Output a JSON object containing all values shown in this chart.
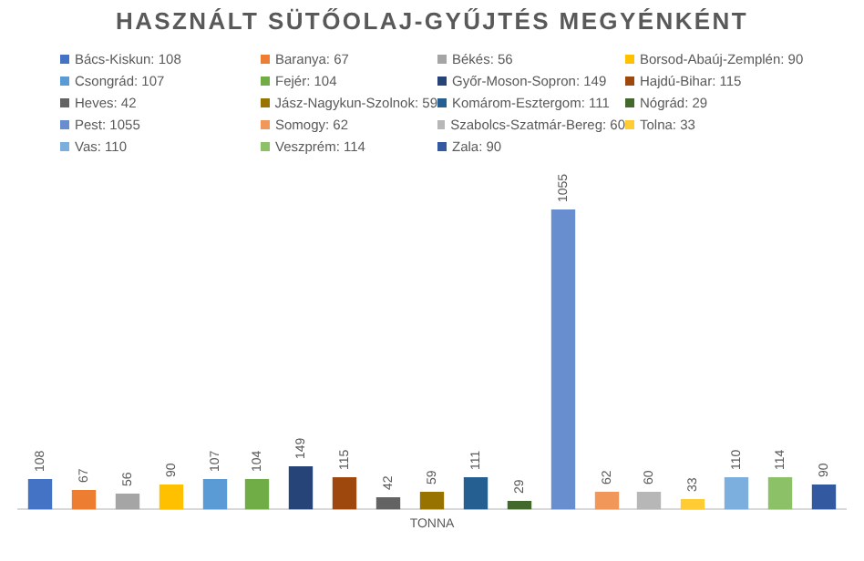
{
  "chart_data": {
    "type": "bar",
    "title": "HASZNÁLT SÜTŐOLAJ-GYŰJTÉS MEGYÉNKÉNT",
    "xlabel": "TONNA",
    "legend": "top",
    "data_labels": true,
    "grid": false,
    "stacked": true,
    "categories": [
      null,
      null,
      null,
      null,
      null,
      null,
      null,
      null,
      null,
      null,
      null,
      null,
      null,
      null,
      null,
      null,
      null,
      null,
      null
    ],
    "series": [
      {
        "name": "Bács-Kiskun: 108",
        "color": "#4472c4",
        "values": [
          108,
          null,
          null,
          null,
          null,
          null,
          null,
          null,
          null,
          null,
          null,
          null,
          null,
          null,
          null,
          null,
          null,
          null,
          null
        ]
      },
      {
        "name": "Baranya: 67",
        "color": "#ed7d31",
        "values": [
          null,
          67,
          null,
          null,
          null,
          null,
          null,
          null,
          null,
          null,
          null,
          null,
          null,
          null,
          null,
          null,
          null,
          null,
          null
        ]
      },
      {
        "name": "Békés: 56",
        "color": "#a5a5a5",
        "values": [
          null,
          null,
          56,
          null,
          null,
          null,
          null,
          null,
          null,
          null,
          null,
          null,
          null,
          null,
          null,
          null,
          null,
          null,
          null
        ]
      },
      {
        "name": "Borsod-Abaúj-Zemplén: 90",
        "color": "#ffc000",
        "values": [
          null,
          null,
          null,
          90,
          null,
          null,
          null,
          null,
          null,
          null,
          null,
          null,
          null,
          null,
          null,
          null,
          null,
          null,
          null
        ]
      },
      {
        "name": "Csongrád: 107",
        "color": "#5b9bd5",
        "values": [
          null,
          null,
          null,
          null,
          107,
          null,
          null,
          null,
          null,
          null,
          null,
          null,
          null,
          null,
          null,
          null,
          null,
          null,
          null
        ]
      },
      {
        "name": "Fejér: 104",
        "color": "#70ad47",
        "values": [
          null,
          null,
          null,
          null,
          null,
          104,
          null,
          null,
          null,
          null,
          null,
          null,
          null,
          null,
          null,
          null,
          null,
          null,
          null
        ]
      },
      {
        "name": "Győr-Moson-Sopron: 149",
        "color": "#264478",
        "values": [
          null,
          null,
          null,
          null,
          null,
          null,
          149,
          null,
          null,
          null,
          null,
          null,
          null,
          null,
          null,
          null,
          null,
          null,
          null
        ]
      },
      {
        "name": "Hajdú-Bihar: 115",
        "color": "#9e480e",
        "values": [
          null,
          null,
          null,
          null,
          null,
          null,
          null,
          115,
          null,
          null,
          null,
          null,
          null,
          null,
          null,
          null,
          null,
          null,
          null
        ]
      },
      {
        "name": "Heves: 42",
        "color": "#636363",
        "values": [
          null,
          null,
          null,
          null,
          null,
          null,
          null,
          null,
          42,
          null,
          null,
          null,
          null,
          null,
          null,
          null,
          null,
          null,
          null
        ]
      },
      {
        "name": "Jász-Nagykun-Szolnok: 59",
        "color": "#997300",
        "values": [
          null,
          null,
          null,
          null,
          null,
          null,
          null,
          null,
          null,
          59,
          null,
          null,
          null,
          null,
          null,
          null,
          null,
          null,
          null
        ]
      },
      {
        "name": "Komárom-Esztergom: 111",
        "color": "#255e91",
        "values": [
          null,
          null,
          null,
          null,
          null,
          null,
          null,
          null,
          null,
          null,
          111,
          null,
          null,
          null,
          null,
          null,
          null,
          null,
          null
        ]
      },
      {
        "name": "Nógrád: 29",
        "color": "#43682b",
        "values": [
          null,
          null,
          null,
          null,
          null,
          null,
          null,
          null,
          null,
          null,
          null,
          29,
          null,
          null,
          null,
          null,
          null,
          null,
          null
        ]
      },
      {
        "name": "Pest: 1055",
        "color": "#698ed0",
        "values": [
          null,
          null,
          null,
          null,
          null,
          null,
          null,
          null,
          null,
          null,
          null,
          null,
          1055,
          null,
          null,
          null,
          null,
          null,
          null
        ]
      },
      {
        "name": "Somogy: 62",
        "color": "#f1975a",
        "values": [
          null,
          null,
          null,
          null,
          null,
          null,
          null,
          null,
          null,
          null,
          null,
          null,
          null,
          62,
          null,
          null,
          null,
          null,
          null
        ]
      },
      {
        "name": "Szabolcs-Szatmár-Bereg: 60",
        "color": "#b7b7b7",
        "values": [
          null,
          null,
          null,
          null,
          null,
          null,
          null,
          null,
          null,
          null,
          null,
          null,
          null,
          null,
          60,
          null,
          null,
          null,
          null
        ]
      },
      {
        "name": "Tolna: 33",
        "color": "#ffcd33",
        "values": [
          null,
          null,
          null,
          null,
          null,
          null,
          null,
          null,
          null,
          null,
          null,
          null,
          null,
          null,
          null,
          33,
          null,
          null,
          null
        ]
      },
      {
        "name": "Vas: 110",
        "color": "#7cafdd",
        "values": [
          null,
          null,
          null,
          null,
          null,
          null,
          null,
          null,
          null,
          null,
          null,
          null,
          null,
          null,
          null,
          null,
          110,
          null,
          null
        ]
      },
      {
        "name": "Veszprém: 114",
        "color": "#8cc168",
        "values": [
          null,
          null,
          null,
          null,
          null,
          null,
          null,
          null,
          null,
          null,
          null,
          null,
          null,
          null,
          null,
          null,
          null,
          114,
          null
        ]
      },
      {
        "name": "Zala: 90",
        "color": "#335aa1",
        "values": [
          null,
          null,
          null,
          null,
          null,
          null,
          null,
          null,
          null,
          null,
          null,
          null,
          null,
          null,
          null,
          null,
          null,
          null,
          90
        ]
      }
    ]
  }
}
